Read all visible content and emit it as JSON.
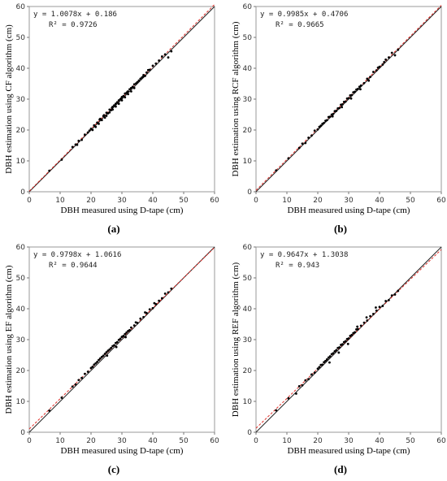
{
  "figure": {
    "x_ticks": [
      "0",
      "10",
      "20",
      "30",
      "40",
      "50",
      "60"
    ],
    "y_ticks": [
      "0",
      "10",
      "20",
      "30",
      "40",
      "50",
      "60"
    ]
  },
  "chart_data": [
    {
      "type": "scatter",
      "panel_label": "(a)",
      "xlabel": "DBH measured using D-tape (cm)",
      "ylabel": "DBH estimation using CF algorithm (cm)",
      "xlim": [
        0,
        60
      ],
      "ylim": [
        0,
        60
      ],
      "equation": "y = 1.0078x + 0.186",
      "r2": "R² = 0.9726",
      "fit": {
        "slope": 1.0078,
        "intercept": 0.186
      },
      "grid": false,
      "point_color": "#000000",
      "fit_color": "#e0302a",
      "identity_color": "#222222",
      "points": [
        [
          6.5,
          6.8
        ],
        [
          10.5,
          10.4
        ],
        [
          14,
          14.5
        ],
        [
          15,
          15.3
        ],
        [
          15.5,
          15.2
        ],
        [
          16,
          16.5
        ],
        [
          17,
          16.8
        ],
        [
          18,
          18.5
        ],
        [
          19,
          19.2
        ],
        [
          20,
          20.4
        ],
        [
          20.5,
          20
        ],
        [
          21,
          21.5
        ],
        [
          21.5,
          21
        ],
        [
          22,
          22.4
        ],
        [
          22.5,
          22
        ],
        [
          23,
          23.6
        ],
        [
          23.5,
          23.2
        ],
        [
          24,
          24.5
        ],
        [
          24.5,
          24
        ],
        [
          25,
          25.6
        ],
        [
          25,
          24.6
        ],
        [
          25.5,
          25.4
        ],
        [
          26,
          26.6
        ],
        [
          26,
          25.7
        ],
        [
          26.5,
          26.4
        ],
        [
          27,
          27.5
        ],
        [
          27,
          26.6
        ],
        [
          27.5,
          28
        ],
        [
          28,
          28.5
        ],
        [
          28,
          27.6
        ],
        [
          28.5,
          29
        ],
        [
          29,
          29.6
        ],
        [
          29,
          28.5
        ],
        [
          29.5,
          30
        ],
        [
          30,
          30.7
        ],
        [
          30,
          29.6
        ],
        [
          30.5,
          31
        ],
        [
          31,
          31.8
        ],
        [
          31,
          30.6
        ],
        [
          31.5,
          32
        ],
        [
          32,
          32.5
        ],
        [
          32,
          31.6
        ],
        [
          32.5,
          33.2
        ],
        [
          33,
          33.6
        ],
        [
          33,
          32.5
        ],
        [
          33.5,
          34
        ],
        [
          34,
          34.8
        ],
        [
          34,
          33.6
        ],
        [
          35,
          35.5
        ],
        [
          35.5,
          36
        ],
        [
          36,
          36.6
        ],
        [
          36.5,
          37
        ],
        [
          37,
          37.8
        ],
        [
          37.5,
          37.5
        ],
        [
          38,
          38.6
        ],
        [
          39,
          39.5
        ],
        [
          40,
          40.8
        ],
        [
          41,
          41.5
        ],
        [
          42,
          42.5
        ],
        [
          43,
          43.8
        ],
        [
          44,
          44.5
        ],
        [
          45,
          43.5
        ],
        [
          46,
          45.5
        ],
        [
          19.5,
          19.8
        ],
        [
          22.8,
          23.4
        ],
        [
          24.2,
          24.8
        ],
        [
          26.8,
          27.2
        ],
        [
          29.8,
          30.2
        ],
        [
          31.8,
          32.4
        ],
        [
          34.6,
          35.1
        ],
        [
          36.8,
          37.2
        ],
        [
          38.5,
          39.4
        ]
      ]
    },
    {
      "type": "scatter",
      "panel_label": "(b)",
      "xlabel": "DBH measured using D-tape (cm)",
      "ylabel": "DBH estimation using RCF algorithm (cm)",
      "xlim": [
        0,
        60
      ],
      "ylim": [
        0,
        60
      ],
      "equation": "y = 0.9985x + 0.4706",
      "r2": "R² = 0.9665",
      "fit": {
        "slope": 0.9985,
        "intercept": 0.4706
      },
      "grid": false,
      "point_color": "#000000",
      "fit_color": "#e0302a",
      "identity_color": "#222222",
      "points": [
        [
          6.5,
          6.9
        ],
        [
          10.5,
          10.8
        ],
        [
          14,
          14.2
        ],
        [
          15,
          15.6
        ],
        [
          16,
          15.8
        ],
        [
          17,
          17.5
        ],
        [
          18,
          18.2
        ],
        [
          19,
          19.8
        ],
        [
          20,
          20.2
        ],
        [
          20.5,
          21
        ],
        [
          21,
          21.4
        ],
        [
          21.5,
          22
        ],
        [
          22,
          22.3
        ],
        [
          22.5,
          23
        ],
        [
          23,
          23.2
        ],
        [
          23.5,
          24.2
        ],
        [
          24,
          24.3
        ],
        [
          24.5,
          25
        ],
        [
          25,
          25.2
        ],
        [
          25.5,
          26.1
        ],
        [
          26,
          26.2
        ],
        [
          26.5,
          27
        ],
        [
          27,
          27.1
        ],
        [
          27.5,
          28.2
        ],
        [
          28,
          28.3
        ],
        [
          28.5,
          29.1
        ],
        [
          29,
          29.2
        ],
        [
          29.5,
          30.2
        ],
        [
          30,
          30.3
        ],
        [
          30.5,
          31.2
        ],
        [
          31,
          31.3
        ],
        [
          31.5,
          32.2
        ],
        [
          32,
          32.4
        ],
        [
          32.5,
          33.1
        ],
        [
          33,
          33.3
        ],
        [
          33.5,
          34
        ],
        [
          34,
          34.4
        ],
        [
          35,
          35.2
        ],
        [
          36,
          36.6
        ],
        [
          37,
          37.2
        ],
        [
          38,
          38.8
        ],
        [
          39,
          39.3
        ],
        [
          40,
          40.5
        ],
        [
          41,
          41.2
        ],
        [
          42,
          42.8
        ],
        [
          43,
          43.5
        ],
        [
          44,
          45
        ],
        [
          45,
          44.2
        ],
        [
          46,
          46
        ],
        [
          24.8,
          24.4
        ],
        [
          27.8,
          27.4
        ],
        [
          30.8,
          30.2
        ],
        [
          33.8,
          33.2
        ],
        [
          36.5,
          36
        ],
        [
          39.5,
          40.2
        ],
        [
          41.5,
          42
        ]
      ]
    },
    {
      "type": "scatter",
      "panel_label": "(c)",
      "xlabel": "DBH measured using D-tape (cm)",
      "ylabel": "DBH estimation using EF algorithm (cm)",
      "xlim": [
        0,
        60
      ],
      "ylim": [
        0,
        60
      ],
      "equation": "y = 0.9798x + 1.0616",
      "r2": "R² = 0.9644",
      "fit": {
        "slope": 0.9798,
        "intercept": 1.0616
      },
      "grid": false,
      "point_color": "#000000",
      "fit_color": "#e0302a",
      "identity_color": "#222222",
      "points": [
        [
          6.5,
          7
        ],
        [
          10.5,
          11.2
        ],
        [
          14,
          14.8
        ],
        [
          15,
          15.5
        ],
        [
          16,
          16.9
        ],
        [
          17,
          17.6
        ],
        [
          18,
          18.9
        ],
        [
          19,
          19.6
        ],
        [
          20,
          20.8
        ],
        [
          20.5,
          21.2
        ],
        [
          21,
          21.9
        ],
        [
          21.5,
          22.3
        ],
        [
          22,
          22.8
        ],
        [
          22.5,
          23.4
        ],
        [
          23,
          23.9
        ],
        [
          23.5,
          24.4
        ],
        [
          24,
          24.8
        ],
        [
          24.5,
          25.4
        ],
        [
          25,
          25.9
        ],
        [
          25.5,
          26.4
        ],
        [
          26,
          26.8
        ],
        [
          26.5,
          27.3
        ],
        [
          27,
          27.9
        ],
        [
          27.5,
          28.2
        ],
        [
          28,
          28.9
        ],
        [
          28.5,
          29.2
        ],
        [
          29,
          29.9
        ],
        [
          29.5,
          30.3
        ],
        [
          30,
          30.9
        ],
        [
          30.5,
          31.2
        ],
        [
          31,
          31.8
        ],
        [
          31.5,
          32.3
        ],
        [
          32,
          32.8
        ],
        [
          32.5,
          33.1
        ],
        [
          33,
          33.9
        ],
        [
          34,
          34.6
        ],
        [
          35,
          35.4
        ],
        [
          36,
          36.8
        ],
        [
          37,
          37.3
        ],
        [
          38,
          38.6
        ],
        [
          39,
          39.8
        ],
        [
          40,
          40.2
        ],
        [
          41,
          41.5
        ],
        [
          42,
          42.6
        ],
        [
          43,
          43.4
        ],
        [
          44,
          44.9
        ],
        [
          45,
          45.3
        ],
        [
          46,
          46.5
        ],
        [
          25.2,
          24.8
        ],
        [
          28.2,
          27.6
        ],
        [
          31.2,
          30.8
        ],
        [
          34.5,
          35.6
        ],
        [
          37.5,
          38.8
        ],
        [
          40.5,
          41.8
        ]
      ]
    },
    {
      "type": "scatter",
      "panel_label": "(d)",
      "xlabel": "DBH measured using D-tape (cm)",
      "ylabel": "DBH estimation using REF algorithm (cm)",
      "xlim": [
        0,
        60
      ],
      "ylim": [
        0,
        60
      ],
      "equation": "y = 0.9647x + 1.3038",
      "r2": "R² = 0.943",
      "fit": {
        "slope": 0.9647,
        "intercept": 1.3038
      },
      "grid": false,
      "point_color": "#000000",
      "fit_color": "#e0302a",
      "identity_color": "#222222",
      "points": [
        [
          6.5,
          7.1
        ],
        [
          10.5,
          11
        ],
        [
          13,
          12.5
        ],
        [
          14,
          14.9
        ],
        [
          15,
          15.2
        ],
        [
          16,
          16.8
        ],
        [
          17,
          17.2
        ],
        [
          18,
          18.7
        ],
        [
          19,
          19.3
        ],
        [
          20,
          20.6
        ],
        [
          20.5,
          21.1
        ],
        [
          21,
          21.8
        ],
        [
          21.5,
          21.9
        ],
        [
          22,
          22.7
        ],
        [
          22.5,
          23.1
        ],
        [
          23,
          23.6
        ],
        [
          23.5,
          24.2
        ],
        [
          24,
          24.6
        ],
        [
          24.5,
          25.3
        ],
        [
          25,
          25.6
        ],
        [
          25.5,
          26.2
        ],
        [
          26,
          26.6
        ],
        [
          26.5,
          27.3
        ],
        [
          27,
          27.5
        ],
        [
          27.5,
          28.3
        ],
        [
          28,
          28.5
        ],
        [
          28.5,
          29.2
        ],
        [
          29,
          29.5
        ],
        [
          29.5,
          30.2
        ],
        [
          30,
          30.4
        ],
        [
          30.5,
          31.2
        ],
        [
          31,
          31.5
        ],
        [
          31.5,
          32.1
        ],
        [
          32,
          32.4
        ],
        [
          32.5,
          33.3
        ],
        [
          33,
          33.4
        ],
        [
          34,
          34.5
        ],
        [
          35,
          35.5
        ],
        [
          36,
          36.2
        ],
        [
          37,
          37.6
        ],
        [
          38,
          38.3
        ],
        [
          39,
          39.4
        ],
        [
          40,
          40.6
        ],
        [
          41,
          40.9
        ],
        [
          42,
          42.5
        ],
        [
          43,
          42.8
        ],
        [
          44,
          44.3
        ],
        [
          45,
          44.6
        ],
        [
          46,
          45.8
        ],
        [
          23.8,
          22.6
        ],
        [
          26.8,
          25.8
        ],
        [
          29.8,
          28.6
        ],
        [
          32.8,
          34.2
        ],
        [
          35.8,
          37.2
        ],
        [
          38.8,
          40.4
        ]
      ]
    }
  ]
}
